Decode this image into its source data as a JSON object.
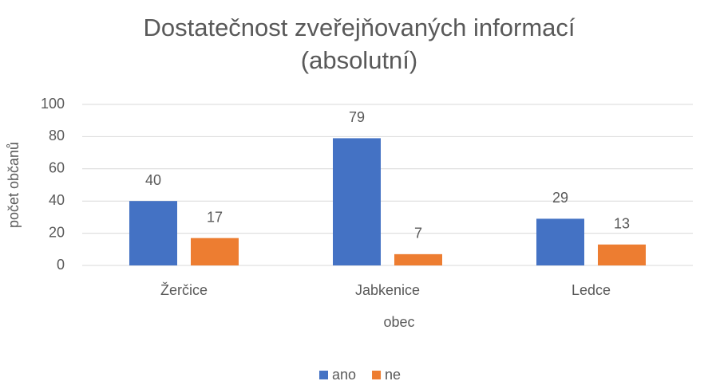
{
  "chart_data": {
    "type": "bar",
    "title": [
      "Dostatečnost zveřejňovaných informací",
      "(absolutní)"
    ],
    "x_label": "obec",
    "y_label": "počet občanů",
    "categories": [
      "Žerčice",
      "Jabkenice",
      "Ledce"
    ],
    "series": [
      {
        "name": "ano",
        "color": "#4472c4",
        "values": [
          40,
          79,
          29
        ]
      },
      {
        "name": "ne",
        "color": "#ed7d31",
        "values": [
          17,
          7,
          13
        ]
      }
    ],
    "ylim": [
      0,
      100
    ],
    "yticks": [
      0,
      20,
      40,
      60,
      80,
      100
    ],
    "grid": true,
    "legend": "bottom"
  }
}
